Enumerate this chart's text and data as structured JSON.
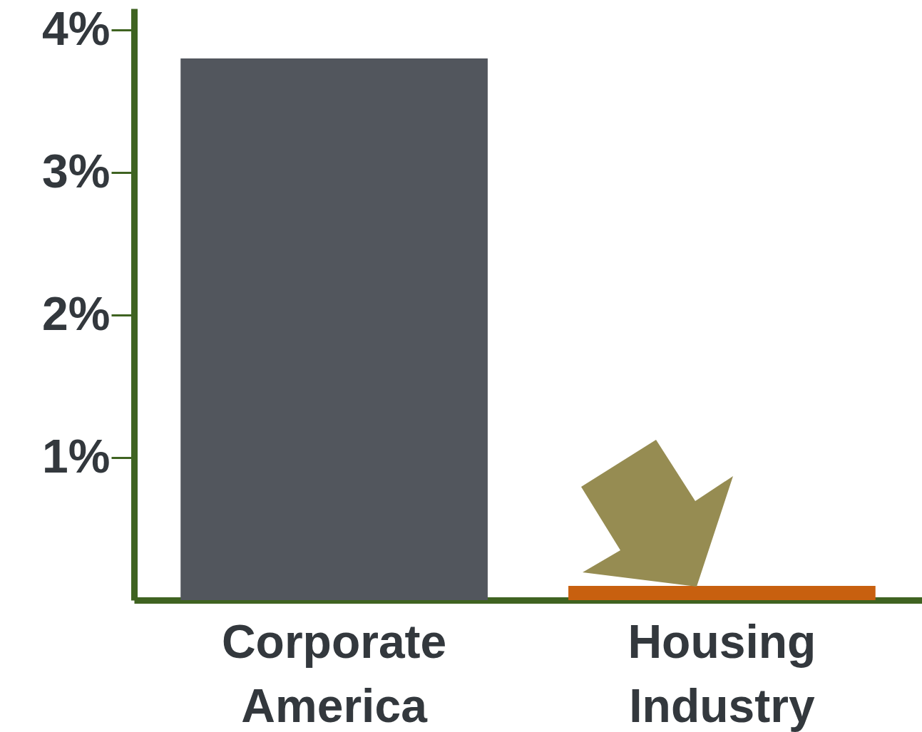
{
  "chart_data": {
    "type": "bar",
    "categories": [
      "Corporate America",
      "Housing Industry"
    ],
    "values": [
      3.8,
      0.1
    ],
    "colors": [
      "#52565d",
      "#c8600f"
    ],
    "ylim": [
      0,
      4.15
    ],
    "yticks": [
      {
        "value": 1,
        "label": "1%"
      },
      {
        "value": 2,
        "label": "2%"
      },
      {
        "value": 3,
        "label": "3%"
      },
      {
        "value": 4,
        "label": "4%"
      }
    ],
    "grid": false
  }
}
